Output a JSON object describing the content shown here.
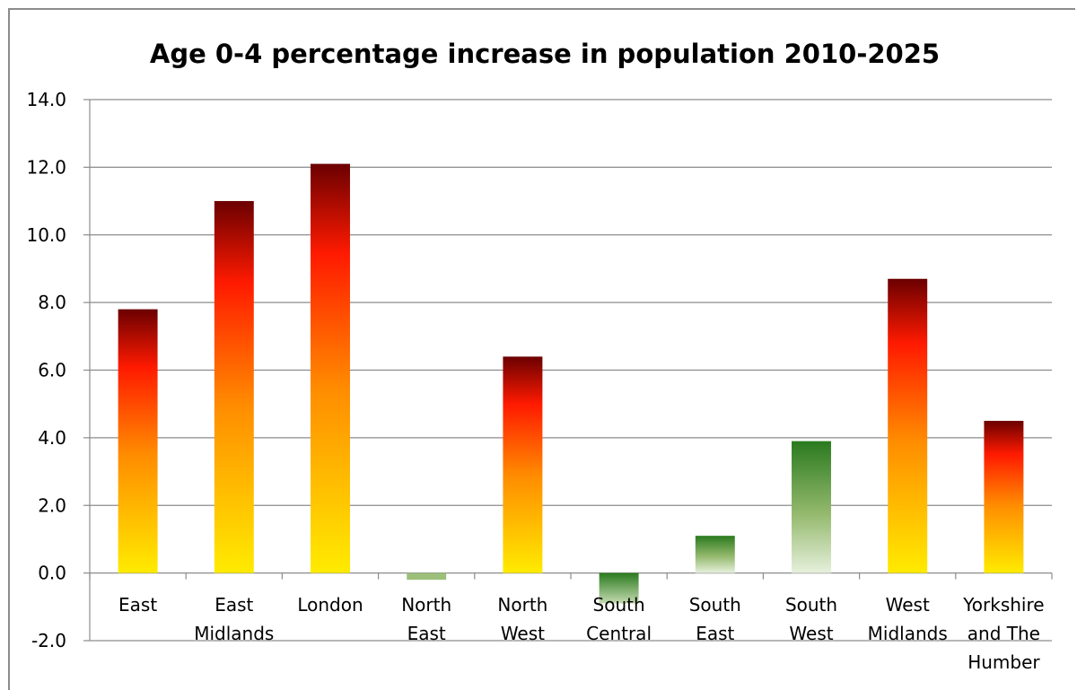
{
  "chart_data": {
    "type": "bar",
    "title": "Age 0-4 percentage increase in population 2010-2025",
    "xlabel": "",
    "ylabel": "",
    "ylim": [
      -2.0,
      14.0
    ],
    "yticks": [
      "14.0",
      "12.0",
      "10.0",
      "8.0",
      "6.0",
      "4.0",
      "2.0",
      "0.0",
      "-2.0"
    ],
    "grid": true,
    "legend": "none",
    "categories": [
      [
        "East"
      ],
      [
        "East",
        "Midlands"
      ],
      [
        "London"
      ],
      [
        "North",
        "East"
      ],
      [
        "North",
        "West"
      ],
      [
        "South",
        "Central"
      ],
      [
        "South",
        "East"
      ],
      [
        "South",
        "West"
      ],
      [
        "West",
        "Midlands"
      ],
      [
        "Yorkshire",
        "and The",
        "Humber"
      ]
    ],
    "values": [
      7.8,
      11.0,
      12.1,
      -0.2,
      6.4,
      -0.9,
      1.1,
      3.9,
      8.7,
      4.5
    ],
    "colors": {
      "increase_top": "#6b0000",
      "increase_mid_red": "#ff1a00",
      "increase_mid_orange": "#ff8c00",
      "increase_bottom": "#ffeb00",
      "decrease_dark": "#2a7a1e",
      "decrease_light": "#e6f0dc",
      "gridline": "#8c8c8c"
    }
  }
}
